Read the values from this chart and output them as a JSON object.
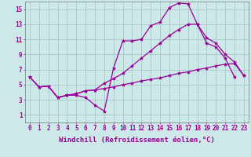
{
  "background_color": "#cce8e8",
  "grid_color": "#aacccc",
  "line_color": "#990099",
  "marker": "*",
  "marker_size": 3,
  "xlabel": "Windchill (Refroidissement éolien,°C)",
  "xlabel_fontsize": 6.5,
  "tick_fontsize": 5.5,
  "ylim": [
    0,
    16
  ],
  "xlim": [
    -0.5,
    23.5
  ],
  "yticks": [
    1,
    3,
    5,
    7,
    9,
    11,
    13,
    15
  ],
  "xticks": [
    0,
    1,
    2,
    3,
    4,
    5,
    6,
    7,
    8,
    9,
    10,
    11,
    12,
    13,
    14,
    15,
    16,
    17,
    18,
    19,
    20,
    21,
    22,
    23
  ],
  "line1_y": [
    6.0,
    4.7,
    4.8,
    3.3,
    3.6,
    3.6,
    3.3,
    2.3,
    1.5,
    7.2,
    10.8,
    10.8,
    11.0,
    12.8,
    13.3,
    15.2,
    15.8,
    15.7,
    13.0,
    10.5,
    10.0,
    8.5,
    6.0,
    null
  ],
  "line2_y": [
    6.0,
    4.7,
    4.8,
    3.3,
    3.6,
    3.8,
    4.2,
    4.3,
    5.2,
    5.8,
    6.5,
    7.5,
    8.5,
    9.5,
    10.5,
    11.5,
    12.3,
    13.0,
    13.0,
    11.2,
    10.5,
    9.0,
    8.0,
    6.2
  ],
  "line3_y": [
    6.0,
    4.7,
    4.8,
    3.3,
    3.6,
    3.8,
    4.2,
    4.3,
    4.5,
    4.7,
    5.0,
    5.2,
    5.5,
    5.7,
    5.9,
    6.2,
    6.5,
    6.7,
    7.0,
    7.2,
    7.5,
    7.7,
    7.8,
    6.2
  ]
}
